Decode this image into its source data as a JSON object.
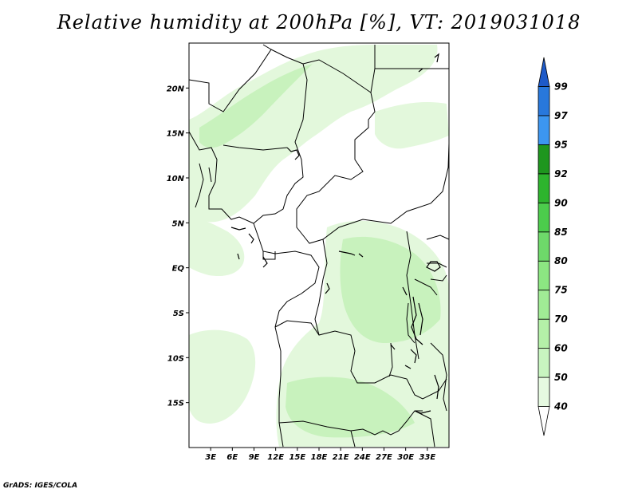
{
  "title": "Relative humidity at 200hPa [%], VT: 2019031018",
  "credit": "GrADS: IGES/COLA",
  "map": {
    "lon_range": [
      0,
      36
    ],
    "lat_range": [
      -20,
      25
    ],
    "lat_ticks": [
      {
        "value": 20,
        "label": "20N"
      },
      {
        "value": 15,
        "label": "15N"
      },
      {
        "value": 10,
        "label": "10N"
      },
      {
        "value": 5,
        "label": "5N"
      },
      {
        "value": 0,
        "label": "EQ"
      },
      {
        "value": -5,
        "label": "5S"
      },
      {
        "value": -10,
        "label": "10S"
      },
      {
        "value": -15,
        "label": "15S"
      }
    ],
    "lon_ticks": [
      {
        "value": 3,
        "label": "3E"
      },
      {
        "value": 6,
        "label": "6E"
      },
      {
        "value": 9,
        "label": "9E"
      },
      {
        "value": 12,
        "label": "12E"
      },
      {
        "value": 15,
        "label": "15E"
      },
      {
        "value": 18,
        "label": "18E"
      },
      {
        "value": 21,
        "label": "21E"
      },
      {
        "value": 24,
        "label": "24E"
      },
      {
        "value": 27,
        "label": "27E"
      },
      {
        "value": 30,
        "label": "30E"
      },
      {
        "value": 33,
        "label": "33E"
      }
    ]
  },
  "colorbar": {
    "levels": [
      "40",
      "50",
      "60",
      "70",
      "75",
      "80",
      "85",
      "90",
      "92",
      "95",
      "97",
      "99"
    ],
    "colors": [
      "#ffffff",
      "#e6fae1",
      "#c8f5c0",
      "#b4f0a8",
      "#a0eb95",
      "#8ce682",
      "#6ed96a",
      "#4ccc4c",
      "#2db42d",
      "#1e961e",
      "#3c96f0",
      "#2878dc",
      "#1e5ac8"
    ]
  },
  "colors": {
    "humid_light": "#e3f8dc",
    "humid_mid": "#c8f2bd",
    "border": "#000000"
  }
}
